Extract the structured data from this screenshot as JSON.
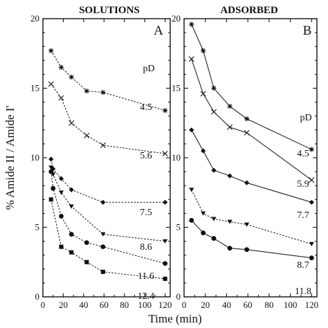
{
  "chart_data": [
    {
      "type": "line",
      "title": "SOLUTIONS",
      "panel_letter": "A",
      "xlabel": "Time (min)",
      "ylabel": "% Amide II / Amide I'",
      "xlim": [
        0,
        125
      ],
      "ylim": [
        0,
        20
      ],
      "xticks": [
        0,
        20,
        40,
        60,
        80,
        100,
        120
      ],
      "yticks": [
        0,
        5,
        10,
        15,
        20
      ],
      "series_header": "pD",
      "series": [
        {
          "name": "4.5",
          "marker": "asterisk",
          "dashed": true,
          "x": [
            8,
            18,
            28,
            43,
            59,
            120
          ],
          "y": [
            17.7,
            16.5,
            15.8,
            14.8,
            14.7,
            13.4
          ]
        },
        {
          "name": "5.6",
          "marker": "x",
          "dashed": true,
          "x": [
            8,
            18,
            28,
            43,
            59,
            120
          ],
          "y": [
            15.3,
            14.3,
            12.5,
            11.6,
            10.9,
            10.3
          ]
        },
        {
          "name": "7.5",
          "marker": "diamond",
          "dashed": true,
          "x": [
            8,
            10,
            18,
            28,
            59,
            120
          ],
          "y": [
            9.9,
            9.2,
            8.5,
            7.7,
            6.8,
            6.8
          ]
        },
        {
          "name": "8.6",
          "marker": "triangle-down",
          "dashed": true,
          "x": [
            8,
            10,
            18,
            28,
            59,
            120
          ],
          "y": [
            9.3,
            8.8,
            7.5,
            6.5,
            4.5,
            4.0
          ]
        },
        {
          "name": "11.6",
          "marker": "circle",
          "dashed": true,
          "x": [
            8,
            10,
            18,
            28,
            43,
            59,
            120
          ],
          "y": [
            9.0,
            7.8,
            5.8,
            4.5,
            3.9,
            3.6,
            2.4
          ]
        },
        {
          "name": "12.4",
          "marker": "square",
          "dashed": true,
          "x": [
            8,
            18,
            28,
            43,
            59,
            120
          ],
          "y": [
            7.0,
            3.6,
            3.2,
            2.5,
            1.8,
            1.3
          ]
        }
      ]
    },
    {
      "type": "line",
      "title": "ADSORBED",
      "panel_letter": "B",
      "xlabel": "Time (min)",
      "ylabel": "",
      "xlim": [
        0,
        125
      ],
      "ylim": [
        0,
        20
      ],
      "xticks": [
        0,
        20,
        40,
        60,
        80,
        100,
        120
      ],
      "yticks": [
        0,
        5,
        10,
        15,
        20
      ],
      "series_header": "pD",
      "series": [
        {
          "name": "4.5",
          "marker": "asterisk",
          "dashed": false,
          "x": [
            7,
            18,
            28,
            43,
            59,
            120
          ],
          "y": [
            19.6,
            17.7,
            15.0,
            13.7,
            12.8,
            10.6
          ]
        },
        {
          "name": "5.9",
          "marker": "x",
          "dashed": false,
          "x": [
            7,
            18,
            28,
            43,
            59,
            120
          ],
          "y": [
            17.1,
            14.6,
            13.3,
            12.2,
            11.8,
            8.4
          ]
        },
        {
          "name": "7.7",
          "marker": "diamond",
          "dashed": false,
          "x": [
            7,
            18,
            28,
            43,
            59,
            120
          ],
          "y": [
            12.0,
            10.5,
            9.1,
            8.7,
            8.2,
            6.8
          ]
        },
        {
          "name": "8.7",
          "marker": "triangle-down",
          "dashed": true,
          "x": [
            7,
            18,
            28,
            43,
            59,
            120
          ],
          "y": [
            7.7,
            6.0,
            5.6,
            5.4,
            5.2,
            3.8
          ]
        },
        {
          "name": "11.8",
          "marker": "circle",
          "dashed": false,
          "x": [
            7,
            18,
            28,
            43,
            59,
            120
          ],
          "y": [
            5.5,
            4.6,
            4.2,
            3.5,
            3.4,
            2.8
          ]
        }
      ]
    }
  ]
}
